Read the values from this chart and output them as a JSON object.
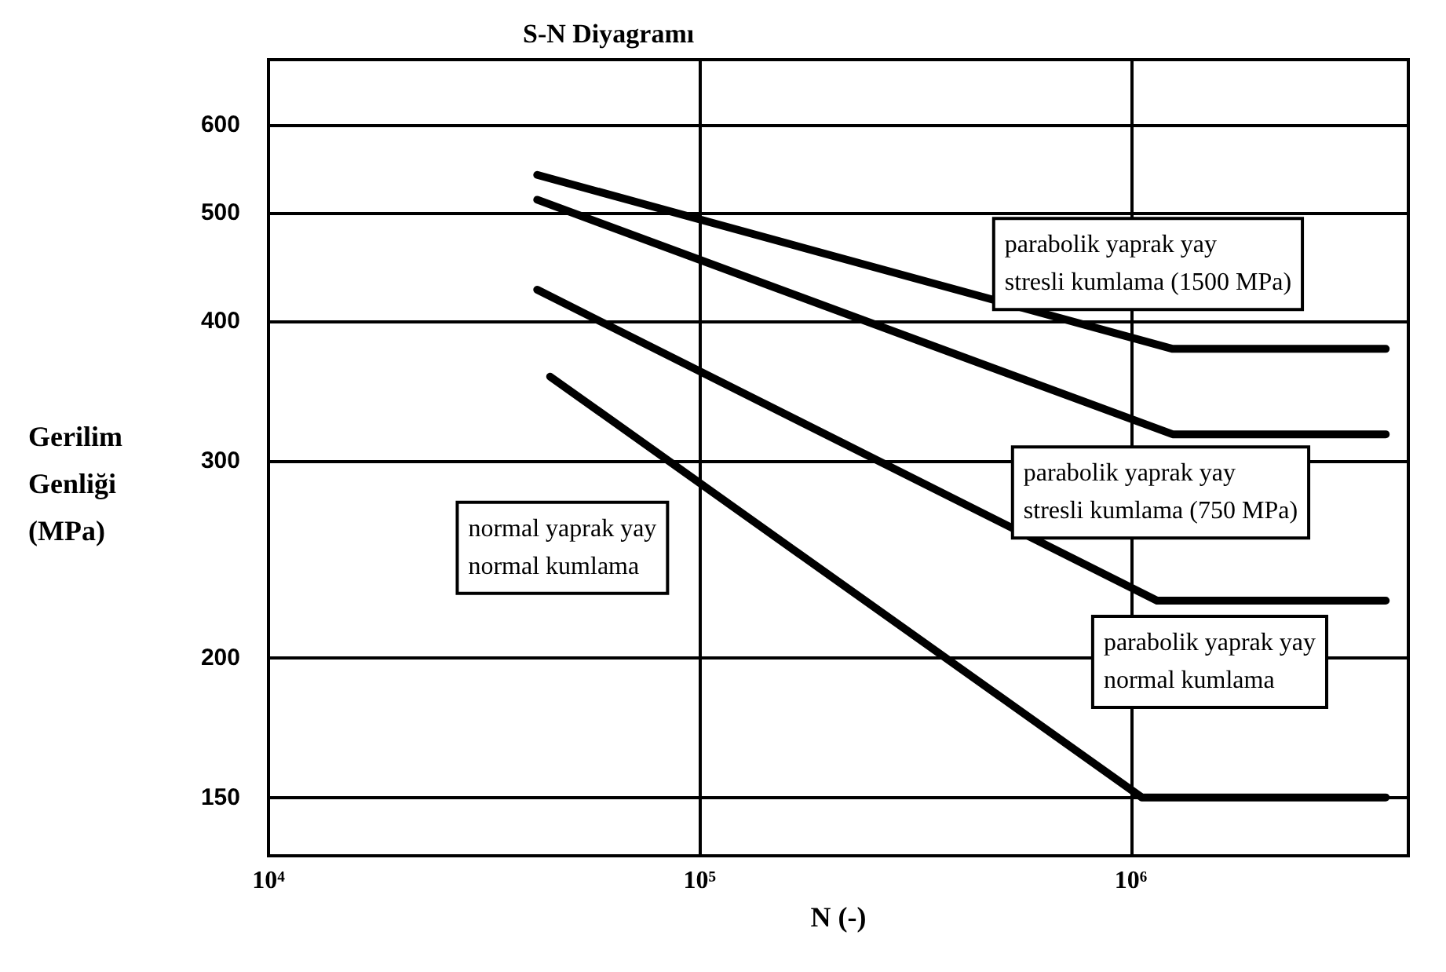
{
  "chart_data": {
    "type": "line",
    "title": "S-N Diyagramı",
    "xlabel": "N (-)",
    "ylabel": "Gerilim\nGenliği\n(MPa)",
    "log": "xy",
    "grid": true,
    "legend": false,
    "marker": "none",
    "line_style": "solid",
    "xlim": [
      10000,
      4400000
    ],
    "xticks": [
      {
        "value": 10000,
        "label": "10⁴"
      },
      {
        "value": 100000,
        "label": "10⁵"
      },
      {
        "value": 1000000,
        "label": "10⁶"
      }
    ],
    "ylim": [
      133,
      686
    ],
    "yticks": [
      150,
      200,
      300,
      400,
      500,
      600
    ],
    "series": [
      {
        "name": "parabolik yaprak yay\nstresli kumlama (1500 MPa)",
        "color": "#000000",
        "x": [
          42000,
          1250000,
          3900000
        ],
        "values": [
          541,
          378,
          378
        ]
      },
      {
        "name": "parabolik yaprak yay\nstresli kumlama (750 MPa)",
        "color": "#000000",
        "x": [
          42000,
          1250000,
          3900000
        ],
        "values": [
          514,
          317,
          317
        ]
      },
      {
        "name": "parabolik yaprak yay\nnormal kumlama",
        "color": "#000000",
        "x": [
          42000,
          1150000,
          3900000
        ],
        "values": [
          427,
          225,
          225
        ]
      },
      {
        "name": "normal yaprak yay\nnormal kumlama",
        "color": "#000000",
        "x": [
          45000,
          1060000,
          3900000
        ],
        "values": [
          357,
          150,
          150
        ]
      }
    ]
  }
}
